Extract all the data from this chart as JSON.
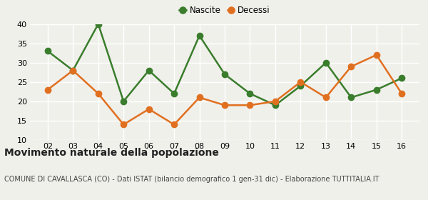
{
  "years": [
    "02",
    "03",
    "04",
    "05",
    "06",
    "07",
    "08",
    "09",
    "10",
    "11",
    "12",
    "13",
    "14",
    "15",
    "16"
  ],
  "nascite": [
    33,
    28,
    40,
    20,
    28,
    22,
    37,
    27,
    22,
    19,
    24,
    30,
    21,
    23,
    26
  ],
  "decessi": [
    23,
    28,
    22,
    14,
    18,
    14,
    21,
    19,
    19,
    20,
    25,
    21,
    29,
    32,
    22
  ],
  "nascite_color": "#3a7d2c",
  "decessi_color": "#e07020",
  "bg_color": "#f0f0eb",
  "grid_color": "#ffffff",
  "ylim": [
    10,
    40
  ],
  "yticks": [
    10,
    15,
    20,
    25,
    30,
    35,
    40
  ],
  "title": "Movimento naturale della popolazione",
  "subtitle": "COMUNE DI CAVALLASCA (CO) - Dati ISTAT (bilancio demografico 1 gen-31 dic) - Elaborazione TUTTITALIA.IT",
  "legend_nascite": "Nascite",
  "legend_decessi": "Decessi",
  "title_fontsize": 10,
  "subtitle_fontsize": 7,
  "marker_size": 6,
  "line_width": 1.8
}
